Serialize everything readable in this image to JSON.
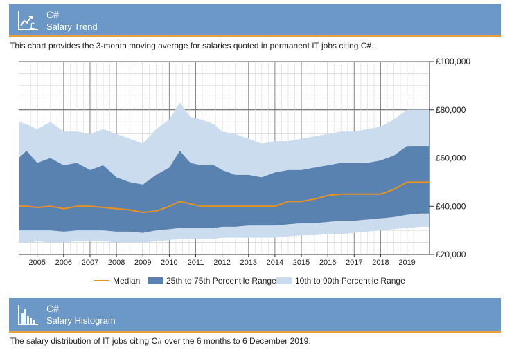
{
  "trend_panel": {
    "title": "C#",
    "subtitle": "Salary Trend",
    "description": "This chart provides the 3-month moving average for salaries quoted in permanent IT jobs citing C#."
  },
  "histogram_panel": {
    "title": "C#",
    "subtitle": "Salary Histogram",
    "description": "The salary distribution of IT jobs citing C# over the 6 months to 6 December 2019."
  },
  "colors": {
    "header_bg": "#6c98c8",
    "header_accent": "#e7a03a",
    "median": "#e8921f",
    "iqr_band": "#5a82b0",
    "decile_band": "#cbdcee"
  },
  "chart_data": {
    "type": "area",
    "title": "Salary Trend",
    "ylim": [
      20000,
      100000
    ],
    "yticks": [
      100000,
      80000,
      60000,
      40000,
      20000
    ],
    "ytick_labels": [
      "£100,000",
      "£80,000",
      "£60,000",
      "£40,000",
      "£20,000"
    ],
    "xlim": [
      2004.3,
      2019.85
    ],
    "xticks": [
      2005,
      2006,
      2007,
      2008,
      2009,
      2010,
      2011,
      2012,
      2013,
      2014,
      2015,
      2016,
      2017,
      2018,
      2019
    ],
    "xtick_labels": [
      "2005",
      "2006",
      "2007",
      "2008",
      "2009",
      "2010",
      "2011",
      "2012",
      "2013",
      "2014",
      "2015",
      "2016",
      "2017",
      "2018",
      "2019"
    ],
    "legend": [
      "Median",
      "25th to 75th Percentile Range",
      "10th to 90th Percentile Range"
    ],
    "legend_position": "bottom",
    "x": [
      2004.3,
      2004.6,
      2005.0,
      2005.5,
      2006.0,
      2006.5,
      2007.0,
      2007.5,
      2008.0,
      2008.5,
      2009.0,
      2009.5,
      2010.0,
      2010.4,
      2010.8,
      2011.2,
      2011.7,
      2012.0,
      2012.5,
      2013.0,
      2013.5,
      2014.0,
      2014.5,
      2015.0,
      2015.5,
      2016.0,
      2016.5,
      2017.0,
      2017.5,
      2018.0,
      2018.5,
      2019.0,
      2019.5,
      2019.85
    ],
    "series": [
      {
        "name": "Median",
        "values": [
          40000,
          40000,
          39500,
          40000,
          39000,
          40000,
          40000,
          39500,
          39000,
          38500,
          37500,
          38000,
          40000,
          42000,
          41000,
          40000,
          40000,
          40000,
          40000,
          40000,
          40000,
          40000,
          42000,
          42000,
          43000,
          44500,
          45000,
          45000,
          45000,
          45000,
          47000,
          50000,
          50000,
          50000
        ]
      },
      {
        "name": "25th Percentile",
        "values": [
          30000,
          30000,
          30000,
          30000,
          29500,
          30000,
          30000,
          30000,
          29500,
          29500,
          29000,
          30000,
          30500,
          31000,
          31000,
          31000,
          31000,
          31500,
          31500,
          32000,
          32000,
          32000,
          32500,
          33000,
          33000,
          33500,
          34000,
          34000,
          34500,
          35000,
          35500,
          36500,
          37000,
          37000
        ]
      },
      {
        "name": "75th Percentile",
        "values": [
          60000,
          63000,
          58000,
          60000,
          57000,
          58000,
          55000,
          57000,
          52000,
          50000,
          49000,
          53000,
          56000,
          63000,
          58000,
          57000,
          57000,
          55000,
          53000,
          53000,
          52000,
          54000,
          55000,
          55000,
          56000,
          57000,
          58000,
          58000,
          58000,
          59000,
          61000,
          65000,
          65000,
          65000
        ]
      },
      {
        "name": "10th Percentile",
        "values": [
          25000,
          24500,
          25500,
          25000,
          25000,
          25500,
          25500,
          25500,
          25000,
          25000,
          25000,
          25500,
          26000,
          26500,
          26500,
          26500,
          26500,
          27000,
          27000,
          27000,
          27000,
          27000,
          27500,
          28000,
          28000,
          28500,
          28500,
          29000,
          29500,
          30000,
          30500,
          31000,
          31500,
          31500
        ]
      },
      {
        "name": "90th Percentile",
        "values": [
          75000,
          74000,
          72000,
          75000,
          71000,
          71000,
          70000,
          72000,
          70000,
          68000,
          66000,
          72000,
          76000,
          83000,
          77000,
          76000,
          74000,
          71000,
          70000,
          68000,
          66000,
          67000,
          67000,
          68000,
          69000,
          70000,
          71000,
          71000,
          72000,
          73000,
          76000,
          80000,
          80000,
          80000
        ]
      }
    ]
  }
}
